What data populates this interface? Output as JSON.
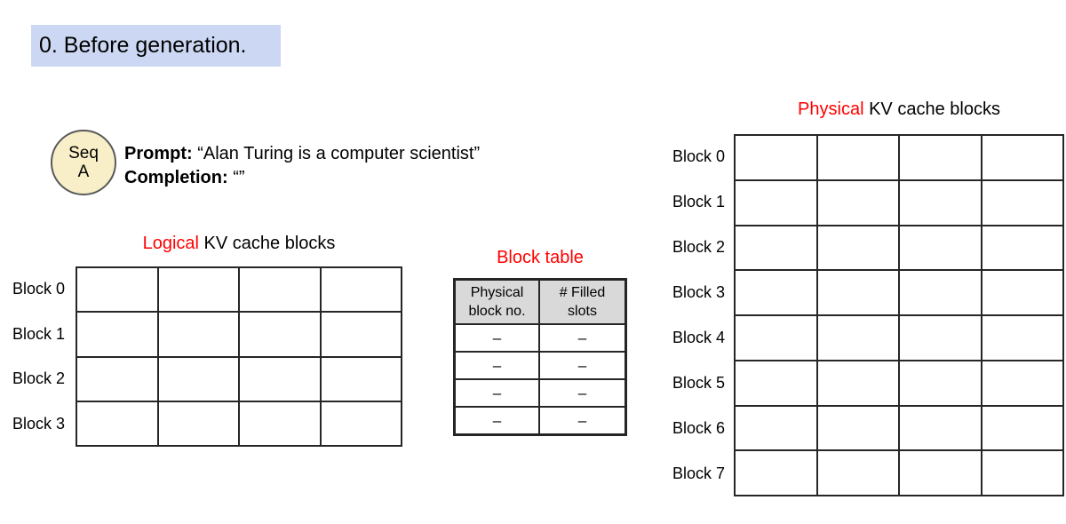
{
  "page": {
    "title": "0. Before generation."
  },
  "colors": {
    "title_badge_bg": "#ccd8f3",
    "seq_circle_bg": "#f8efc9",
    "table_header_bg": "#d9d9d9",
    "highlight_red": "#ff0000",
    "grid_line": "#262626"
  },
  "sequence": {
    "badge_line1": "Seq",
    "badge_line2": "A",
    "prompt_label": "Prompt:",
    "prompt_text": " “Alan Turing is a computer scientist”",
    "completion_label": "Completion:",
    "completion_text": " “”"
  },
  "logical_blocks": {
    "title_highlight": "Logical",
    "title_rest": " KV cache blocks",
    "row_labels": [
      "Block 0",
      "Block 1",
      "Block 2",
      "Block 3"
    ],
    "columns": 4
  },
  "block_table": {
    "title": "Block table",
    "headers": [
      {
        "line1": "Physical",
        "line2": "block no."
      },
      {
        "line1": "# Filled",
        "line2": "slots"
      }
    ],
    "rows": [
      [
        "–",
        "–"
      ],
      [
        "–",
        "–"
      ],
      [
        "–",
        "–"
      ],
      [
        "–",
        "–"
      ]
    ]
  },
  "physical_blocks": {
    "title_highlight": "Physical",
    "title_rest": " KV cache blocks",
    "row_labels": [
      "Block 0",
      "Block 1",
      "Block 2",
      "Block 3",
      "Block 4",
      "Block 5",
      "Block 6",
      "Block 7"
    ],
    "columns": 4
  }
}
